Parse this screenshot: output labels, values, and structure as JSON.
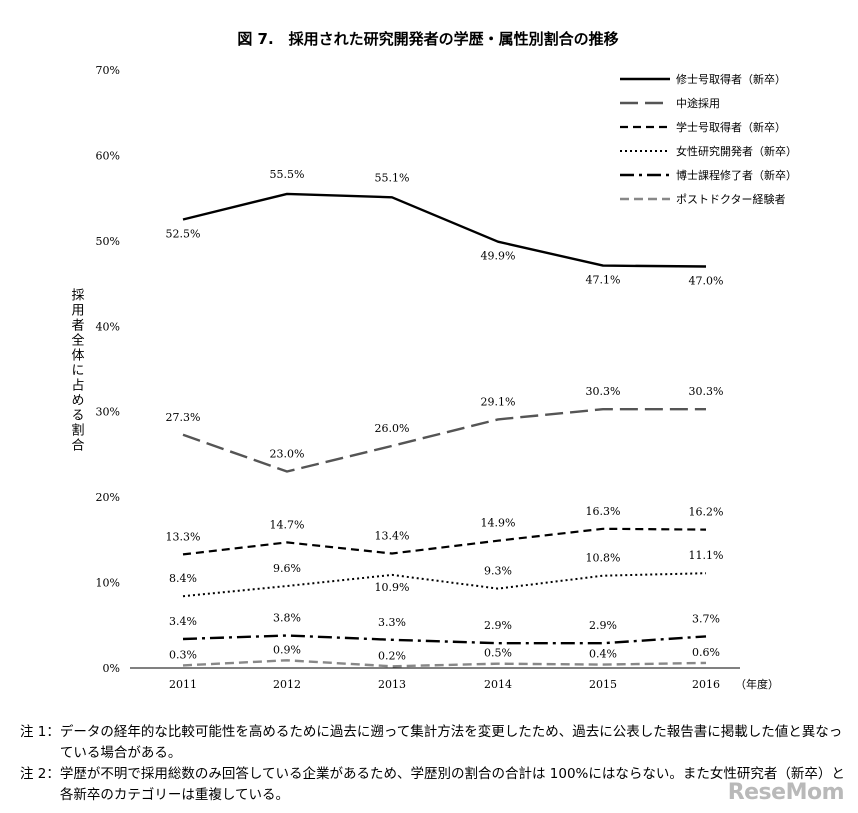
{
  "chart_data": {
    "type": "line",
    "title": "図 7.　採用された研究開発者の学歴・属性別割合の推移",
    "ylabel": "採用者全体に占める割合",
    "xunit": "（年度）",
    "categories": [
      "2011",
      "2012",
      "2013",
      "2014",
      "2015",
      "2016"
    ],
    "ylim": [
      0,
      70
    ],
    "yticks": [
      "0%",
      "10%",
      "20%",
      "30%",
      "40%",
      "50%",
      "60%",
      "70%"
    ],
    "grid": false,
    "legend_position": "top-right",
    "series": [
      {
        "name": "修士号取得者（新卒）",
        "style": "solid",
        "values": [
          52.5,
          55.5,
          55.1,
          49.9,
          47.1,
          47.0
        ],
        "labels": [
          "52.5%",
          "55.5%",
          "55.1%",
          "49.9%",
          "47.1%",
          "47.0%"
        ]
      },
      {
        "name": "中途採用",
        "style": "longdash",
        "values": [
          27.3,
          23.0,
          26.0,
          29.1,
          30.3,
          30.3
        ],
        "labels": [
          "27.3%",
          "23.0%",
          "26.0%",
          "29.1%",
          "30.3%",
          "30.3%"
        ]
      },
      {
        "name": "学士号取得者（新卒）",
        "style": "dash",
        "values": [
          13.3,
          14.7,
          13.4,
          14.9,
          16.3,
          16.2
        ],
        "labels": [
          "13.3%",
          "14.7%",
          "13.4%",
          "14.9%",
          "16.3%",
          "16.2%"
        ]
      },
      {
        "name": "女性研究開発者（新卒）",
        "style": "dot",
        "values": [
          8.4,
          9.6,
          10.9,
          9.3,
          10.8,
          11.1
        ],
        "labels": [
          "8.4%",
          "9.6%",
          "10.9%",
          "9.3%",
          "10.8%",
          "11.1%"
        ]
      },
      {
        "name": "博士課程修了者（新卒）",
        "style": "dashdot",
        "values": [
          3.4,
          3.8,
          3.3,
          2.9,
          2.9,
          3.7
        ],
        "labels": [
          "3.4%",
          "3.8%",
          "3.3%",
          "2.9%",
          "2.9%",
          "3.7%"
        ]
      },
      {
        "name": "ポストドクター経験者",
        "style": "graydash",
        "values": [
          0.3,
          0.9,
          0.2,
          0.5,
          0.4,
          0.6
        ],
        "labels": [
          "0.3%",
          "0.9%",
          "0.2%",
          "0.5%",
          "0.4%",
          "0.6%"
        ]
      }
    ]
  },
  "notes": [
    {
      "label": "注 1：",
      "text": "データの経年的な比較可能性を高めるために過去に遡って集計方法を変更したため、過去に公表した報告書に掲載した値と異なっている場合がある。"
    },
    {
      "label": "注 2：",
      "text": "学歴が不明で採用総数のみ回答している企業があるため、学歴別の割合の合計は 100%にはならない。また女性研究者（新卒）と各新卒のカテゴリーは重複している。"
    }
  ],
  "watermark": "ReseMom"
}
